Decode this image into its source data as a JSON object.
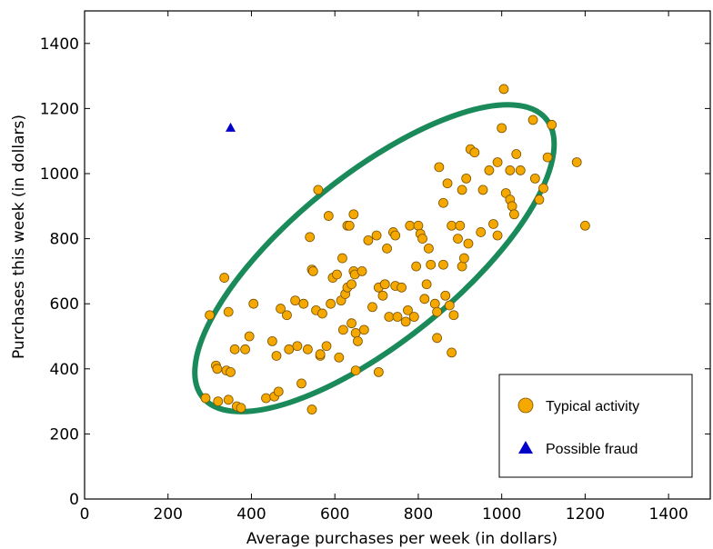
{
  "chart_data": {
    "type": "scatter",
    "title": "",
    "xlabel": "Average purchases per week (in dollars)",
    "ylabel": "Purchases this week (in dollars)",
    "xlim": [
      0,
      1500
    ],
    "ylim": [
      0,
      1500
    ],
    "xticks": [
      0,
      200,
      400,
      600,
      800,
      1000,
      1200,
      1400
    ],
    "yticks": [
      0,
      200,
      400,
      600,
      800,
      1000,
      1200,
      1400
    ],
    "grid": false,
    "legend_position": "bottom-right",
    "legend": [
      "Typical activity",
      "Possible fraud"
    ],
    "colors": {
      "typical": "#f5a800",
      "typical_edge": "#7a5200",
      "fraud": "#0000c8",
      "ellipse": "#1a8a5a"
    },
    "series": [
      {
        "name": "Typical activity",
        "marker": "circle",
        "points": [
          [
            290,
            310
          ],
          [
            300,
            565
          ],
          [
            315,
            410
          ],
          [
            318,
            400
          ],
          [
            320,
            300
          ],
          [
            335,
            680
          ],
          [
            340,
            395
          ],
          [
            345,
            575
          ],
          [
            345,
            305
          ],
          [
            350,
            390
          ],
          [
            360,
            460
          ],
          [
            365,
            285
          ],
          [
            375,
            280
          ],
          [
            385,
            460
          ],
          [
            395,
            500
          ],
          [
            405,
            600
          ],
          [
            435,
            310
          ],
          [
            450,
            485
          ],
          [
            455,
            315
          ],
          [
            460,
            440
          ],
          [
            465,
            330
          ],
          [
            470,
            585
          ],
          [
            485,
            565
          ],
          [
            490,
            460
          ],
          [
            505,
            610
          ],
          [
            510,
            470
          ],
          [
            520,
            355
          ],
          [
            525,
            600
          ],
          [
            535,
            460
          ],
          [
            540,
            805
          ],
          [
            545,
            275
          ],
          [
            545,
            705
          ],
          [
            548,
            700
          ],
          [
            555,
            580
          ],
          [
            560,
            950
          ],
          [
            565,
            440
          ],
          [
            565,
            445
          ],
          [
            570,
            570
          ],
          [
            580,
            470
          ],
          [
            585,
            870
          ],
          [
            590,
            600
          ],
          [
            595,
            680
          ],
          [
            605,
            690
          ],
          [
            610,
            435
          ],
          [
            615,
            610
          ],
          [
            618,
            740
          ],
          [
            620,
            520
          ],
          [
            625,
            630
          ],
          [
            630,
            650
          ],
          [
            630,
            840
          ],
          [
            635,
            840
          ],
          [
            640,
            660
          ],
          [
            640,
            540
          ],
          [
            645,
            875
          ],
          [
            645,
            700
          ],
          [
            648,
            690
          ],
          [
            650,
            510
          ],
          [
            650,
            395
          ],
          [
            655,
            485
          ],
          [
            665,
            700
          ],
          [
            670,
            520
          ],
          [
            680,
            795
          ],
          [
            690,
            590
          ],
          [
            700,
            810
          ],
          [
            705,
            650
          ],
          [
            705,
            390
          ],
          [
            715,
            625
          ],
          [
            720,
            660
          ],
          [
            720,
            660
          ],
          [
            725,
            770
          ],
          [
            730,
            560
          ],
          [
            740,
            820
          ],
          [
            745,
            810
          ],
          [
            745,
            655
          ],
          [
            750,
            560
          ],
          [
            760,
            650
          ],
          [
            770,
            545
          ],
          [
            775,
            580
          ],
          [
            780,
            840
          ],
          [
            790,
            560
          ],
          [
            795,
            715
          ],
          [
            800,
            840
          ],
          [
            805,
            815
          ],
          [
            810,
            800
          ],
          [
            815,
            615
          ],
          [
            820,
            660
          ],
          [
            825,
            770
          ],
          [
            830,
            720
          ],
          [
            840,
            600
          ],
          [
            845,
            575
          ],
          [
            845,
            495
          ],
          [
            850,
            1020
          ],
          [
            860,
            910
          ],
          [
            860,
            720
          ],
          [
            865,
            625
          ],
          [
            870,
            970
          ],
          [
            875,
            595
          ],
          [
            880,
            840
          ],
          [
            880,
            450
          ],
          [
            885,
            565
          ],
          [
            895,
            800
          ],
          [
            900,
            840
          ],
          [
            905,
            950
          ],
          [
            905,
            715
          ],
          [
            910,
            740
          ],
          [
            915,
            985
          ],
          [
            920,
            785
          ],
          [
            925,
            1075
          ],
          [
            935,
            1065
          ],
          [
            950,
            820
          ],
          [
            955,
            950
          ],
          [
            970,
            1010
          ],
          [
            980,
            845
          ],
          [
            990,
            810
          ],
          [
            990,
            1035
          ],
          [
            1000,
            1140
          ],
          [
            1005,
            1260
          ],
          [
            1010,
            940
          ],
          [
            1020,
            1010
          ],
          [
            1020,
            920
          ],
          [
            1025,
            900
          ],
          [
            1030,
            875
          ],
          [
            1035,
            1060
          ],
          [
            1045,
            1010
          ],
          [
            1075,
            1165
          ],
          [
            1080,
            985
          ],
          [
            1090,
            920
          ],
          [
            1100,
            955
          ],
          [
            1110,
            1050
          ],
          [
            1120,
            1150
          ],
          [
            1180,
            1035
          ],
          [
            1200,
            840
          ]
        ]
      },
      {
        "name": "Possible fraud",
        "marker": "triangle",
        "points": [
          [
            350,
            1140
          ]
        ]
      }
    ],
    "annotations": [
      {
        "type": "ellipse",
        "cx": 695,
        "cy": 740,
        "rx": 530,
        "ry": 200,
        "angle_deg": 39
      }
    ]
  }
}
